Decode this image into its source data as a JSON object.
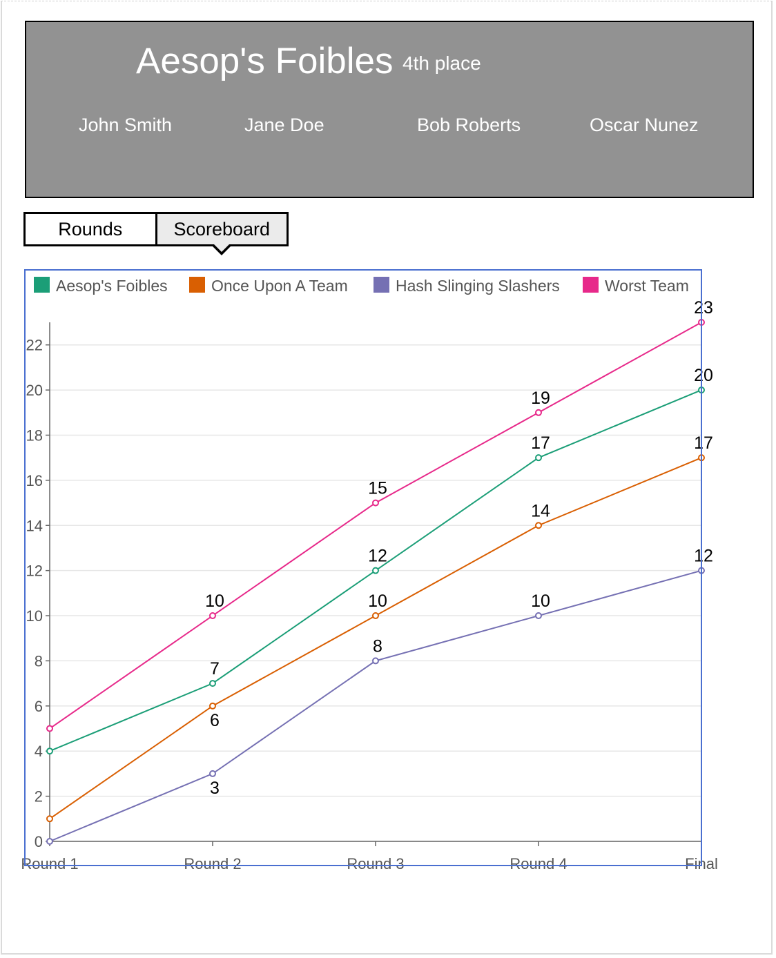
{
  "team": {
    "name": "Aesop's Foibles",
    "place": "4th place",
    "members": [
      "John Smith",
      "Jane Doe",
      "Bob Roberts",
      "Oscar Nunez"
    ]
  },
  "tabs": [
    {
      "label": "Rounds",
      "active": false
    },
    {
      "label": "Scoreboard",
      "active": true
    }
  ],
  "colors": {
    "header_bg": "#929292",
    "chart_border": "#4a6fd0",
    "grid": "#e6e6e6",
    "axis": "#666666"
  },
  "chart_data": {
    "type": "line",
    "x": [
      "Round 1",
      "Round 2",
      "Round 3",
      "Round 4",
      "Final"
    ],
    "ylim": [
      0,
      23
    ],
    "yticks": [
      0,
      2,
      4,
      6,
      8,
      10,
      12,
      14,
      16,
      18,
      20,
      22
    ],
    "grid": true,
    "legend_position": "top",
    "series": [
      {
        "name": "Aesop's Foibles",
        "color": "#1b9e77",
        "values": [
          4,
          7,
          12,
          17,
          20
        ],
        "labels": [
          "",
          "7",
          "12",
          "17",
          "20"
        ],
        "label_pos": [
          "above",
          "above",
          "above",
          "above",
          "above"
        ]
      },
      {
        "name": "Once Upon A Team",
        "color": "#d95f02",
        "values": [
          1,
          6,
          10,
          14,
          17
        ],
        "labels": [
          "",
          "6",
          "10",
          "14",
          "17"
        ],
        "label_pos": [
          "above",
          "below",
          "above",
          "above",
          "above"
        ]
      },
      {
        "name": "Hash Slinging Slashers",
        "color": "#7570b3",
        "values": [
          0,
          3,
          8,
          10,
          12
        ],
        "labels": [
          "",
          "3",
          "8",
          "10",
          "12"
        ],
        "label_pos": [
          "above",
          "below",
          "above",
          "above",
          "above"
        ]
      },
      {
        "name": "Worst Team",
        "color": "#e7298a",
        "values": [
          5,
          10,
          15,
          19,
          23
        ],
        "labels": [
          "",
          "10",
          "15",
          "19",
          "23"
        ],
        "label_pos": [
          "above",
          "above",
          "above",
          "above",
          "above"
        ]
      }
    ]
  }
}
